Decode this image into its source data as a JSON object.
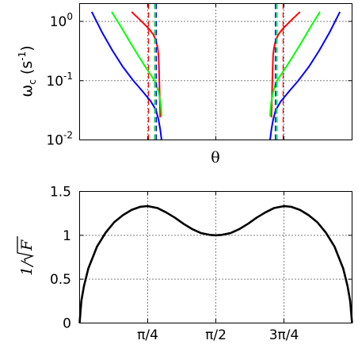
{
  "chart_data": [
    {
      "type": "line",
      "title": "",
      "xlabel": "θ",
      "ylabel": {
        "main": "ω",
        "sub": "c",
        "unit_open": " (s",
        "unit_sup": "-1",
        "unit_close": ")"
      },
      "yscale": "log",
      "xlim": [
        0,
        3.1416
      ],
      "ylim": [
        0.01,
        2
      ],
      "grid": true,
      "legend": "none",
      "y_ticks": [
        {
          "value": 0.01,
          "base": "10",
          "exp": "-2"
        },
        {
          "value": 0.1,
          "base": "10",
          "exp": "-1"
        },
        {
          "value": 1,
          "base": "10",
          "exp": "0"
        }
      ],
      "x_grid": [
        0.7854,
        1.5708,
        2.3562
      ],
      "series": [
        {
          "color": "#ff0000",
          "style": "solid",
          "x": [
            0.6,
            0.7,
            0.8,
            0.85,
            0.88,
            0.9,
            0.91,
            0.915,
            0.92,
            0.925,
            0.93
          ],
          "y": [
            1.45,
            1.05,
            0.75,
            0.6,
            0.48,
            0.36,
            0.27,
            0.17,
            0.09,
            0.045,
            0.024
          ]
        },
        {
          "color": "#ff0000",
          "style": "solid",
          "x": [
            2.5416,
            2.4416,
            2.3416,
            2.2916,
            2.2616,
            2.2416,
            2.2316,
            2.2266,
            2.2216,
            2.2166,
            2.2116
          ],
          "y": [
            1.45,
            1.05,
            0.75,
            0.6,
            0.48,
            0.36,
            0.27,
            0.17,
            0.09,
            0.045,
            0.024
          ]
        },
        {
          "color": "#00ff00",
          "style": "solid",
          "x": [
            0.37,
            0.48,
            0.58,
            0.68,
            0.76,
            0.83,
            0.88,
            0.91,
            0.93,
            0.94,
            0.945
          ],
          "y": [
            1.45,
            0.8,
            0.45,
            0.26,
            0.17,
            0.12,
            0.09,
            0.065,
            0.045,
            0.033,
            0.025
          ]
        },
        {
          "color": "#00ff00",
          "style": "solid",
          "x": [
            2.7716,
            2.6616,
            2.5616,
            2.4616,
            2.3816,
            2.3116,
            2.2616,
            2.2316,
            2.2116,
            2.2016,
            2.1966
          ],
          "y": [
            1.45,
            0.8,
            0.45,
            0.26,
            0.17,
            0.12,
            0.09,
            0.065,
            0.045,
            0.033,
            0.025
          ]
        },
        {
          "color": "#0000ff",
          "style": "solid",
          "x": [
            0.14,
            0.26,
            0.38,
            0.5,
            0.62,
            0.73,
            0.82,
            0.88,
            0.91,
            0.93,
            0.945
          ],
          "y": [
            1.45,
            0.65,
            0.32,
            0.17,
            0.1,
            0.065,
            0.045,
            0.032,
            0.022,
            0.015,
            0.01
          ]
        },
        {
          "color": "#0000ff",
          "style": "solid",
          "x": [
            3.0016,
            2.8816,
            2.7616,
            2.6416,
            2.5216,
            2.4116,
            2.3216,
            2.2616,
            2.2316,
            2.2116,
            2.1966
          ],
          "y": [
            1.45,
            0.65,
            0.32,
            0.17,
            0.1,
            0.065,
            0.045,
            0.032,
            0.022,
            0.015,
            0.01
          ]
        },
        {
          "color": "#ff0000",
          "style": "dashed",
          "x": [
            0.795,
            0.795
          ],
          "y": [
            0.01,
            2
          ]
        },
        {
          "color": "#00cc00",
          "style": "dashed",
          "x": [
            0.865,
            0.865
          ],
          "y": [
            0.01,
            2
          ]
        },
        {
          "color": "#0000ff",
          "style": "dashed",
          "x": [
            0.885,
            0.885
          ],
          "y": [
            0.01,
            2
          ]
        },
        {
          "color": "#00bfbf",
          "style": "dashed",
          "x": [
            0.875,
            0.875
          ],
          "y": [
            0.01,
            2
          ]
        },
        {
          "color": "#ff0000",
          "style": "dashed",
          "x": [
            2.3466,
            2.3466
          ],
          "y": [
            0.01,
            2
          ]
        },
        {
          "color": "#00cc00",
          "style": "dashed",
          "x": [
            2.2766,
            2.2766
          ],
          "y": [
            0.01,
            2
          ]
        },
        {
          "color": "#0000ff",
          "style": "dashed",
          "x": [
            2.2566,
            2.2566
          ],
          "y": [
            0.01,
            2
          ]
        },
        {
          "color": "#00bfbf",
          "style": "dashed",
          "x": [
            2.2666,
            2.2666
          ],
          "y": [
            0.01,
            2
          ]
        }
      ]
    },
    {
      "type": "line",
      "title": "",
      "xlabel": "",
      "ylabel": {
        "main": "1/",
        "radicand": "F"
      },
      "xlim": [
        0,
        3.1416
      ],
      "ylim": [
        0,
        1.5
      ],
      "grid": true,
      "legend": "none",
      "y_ticks": [
        {
          "value": 0,
          "label": "0"
        },
        {
          "value": 0.5,
          "label": "0.5"
        },
        {
          "value": 1,
          "label": "1"
        },
        {
          "value": 1.5,
          "label": "1.5"
        }
      ],
      "x_ticks": [
        {
          "value": 0.7854,
          "label": "π/4"
        },
        {
          "value": 1.5708,
          "label": "π/2"
        },
        {
          "value": 2.3562,
          "label": "3π/4"
        }
      ],
      "series": [
        {
          "color": "#000000",
          "style": "solid",
          "x": [
            0.0,
            0.02,
            0.05,
            0.1,
            0.2,
            0.3,
            0.4,
            0.5,
            0.6,
            0.7,
            0.7854,
            0.9,
            1.0,
            1.1,
            1.2,
            1.3,
            1.4,
            1.5,
            1.5708,
            1.64,
            1.74,
            1.84,
            1.94,
            2.04,
            2.14,
            2.24,
            2.3562,
            2.44,
            2.54,
            2.64,
            2.74,
            2.84,
            2.94,
            3.04,
            3.09,
            3.12,
            3.1416
          ],
          "y": [
            0.0,
            0.25,
            0.42,
            0.62,
            0.87,
            1.03,
            1.15,
            1.23,
            1.29,
            1.325,
            1.333,
            1.31,
            1.26,
            1.2,
            1.13,
            1.07,
            1.025,
            1.005,
            1.0,
            1.005,
            1.025,
            1.07,
            1.13,
            1.2,
            1.26,
            1.31,
            1.333,
            1.325,
            1.29,
            1.23,
            1.15,
            1.03,
            0.87,
            0.62,
            0.42,
            0.25,
            0.0
          ]
        }
      ]
    }
  ]
}
